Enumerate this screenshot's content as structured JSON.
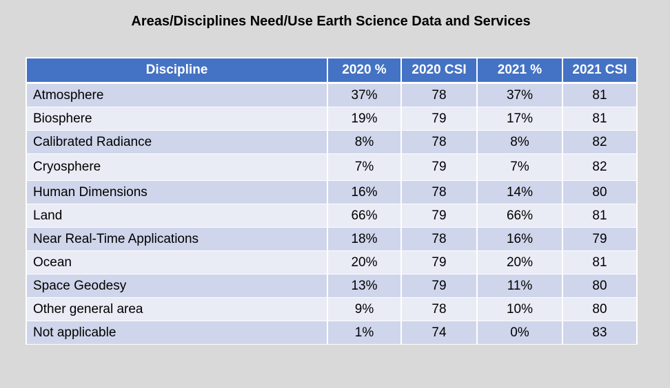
{
  "title": "Areas/Disciplines Need/Use Earth Science Data and Services",
  "table": {
    "headers": [
      "Discipline",
      "2020 %",
      "2020 CSI",
      "2021 %",
      "2021 CSI"
    ],
    "rows": [
      [
        "Atmosphere",
        "37%",
        "78",
        "37%",
        "81"
      ],
      [
        "Biosphere",
        "19%",
        "79",
        "17%",
        "81"
      ],
      [
        "Calibrated Radiance",
        "8%",
        "78",
        "8%",
        "82"
      ],
      [
        "Cryosphere",
        "7%",
        "79",
        "7%",
        "82"
      ],
      [
        "Human Dimensions",
        "16%",
        "78",
        "14%",
        "80"
      ],
      [
        "Land",
        "66%",
        "79",
        "66%",
        "81"
      ],
      [
        "Near Real-Time Applications",
        "18%",
        "78",
        "16%",
        "79"
      ],
      [
        "Ocean",
        "20%",
        "79",
        "20%",
        "81"
      ],
      [
        "Space Geodesy",
        "13%",
        "79",
        "11%",
        "80"
      ],
      [
        "Other general area",
        "9%",
        "78",
        "10%",
        "80"
      ],
      [
        "Not applicable",
        "1%",
        "74",
        "0%",
        "83"
      ]
    ]
  },
  "colors": {
    "header_bg": "#4472c4",
    "row_dark": "#cfd5ea",
    "row_light": "#e9ebf5",
    "page_bg": "#d9d9d9"
  }
}
